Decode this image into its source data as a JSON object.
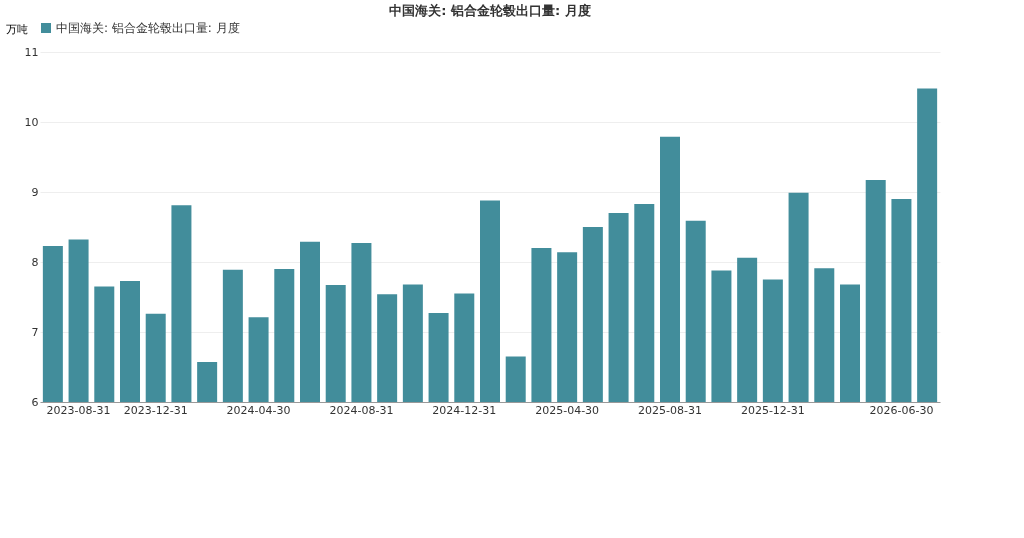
{
  "chart_data": {
    "type": "bar",
    "title": "中国海关: 铝合金轮毂出口量: 月度",
    "ylabel": "万吨",
    "categories": [
      null,
      "2023-08-31",
      null,
      null,
      "2023-12-31",
      null,
      null,
      null,
      "2024-04-30",
      null,
      null,
      null,
      "2024-08-31",
      null,
      null,
      null,
      "2024-12-31",
      null,
      null,
      null,
      "2025-04-30",
      null,
      null,
      null,
      "2025-08-31",
      null,
      null,
      null,
      "2025-12-31",
      null,
      null,
      null,
      null,
      "2026-06-30",
      null
    ],
    "series": [
      {
        "name": "中国海关: 铝合金轮毂出口量: 月度",
        "color": "#428d9b",
        "values": [
          8.23,
          8.32,
          7.65,
          7.73,
          7.26,
          8.81,
          6.57,
          7.89,
          7.21,
          7.9,
          8.29,
          7.67,
          8.27,
          7.54,
          7.68,
          7.27,
          7.55,
          8.88,
          6.65,
          8.2,
          8.14,
          8.5,
          8.7,
          8.83,
          9.79,
          8.59,
          7.88,
          8.06,
          7.75,
          8.99,
          7.91,
          7.68,
          9.17,
          8.9,
          10.48
        ]
      }
    ],
    "ylim": [
      6,
      11
    ],
    "yticks": [
      6,
      7,
      8,
      9,
      10,
      11
    ],
    "grid": "y",
    "legend": "top"
  }
}
